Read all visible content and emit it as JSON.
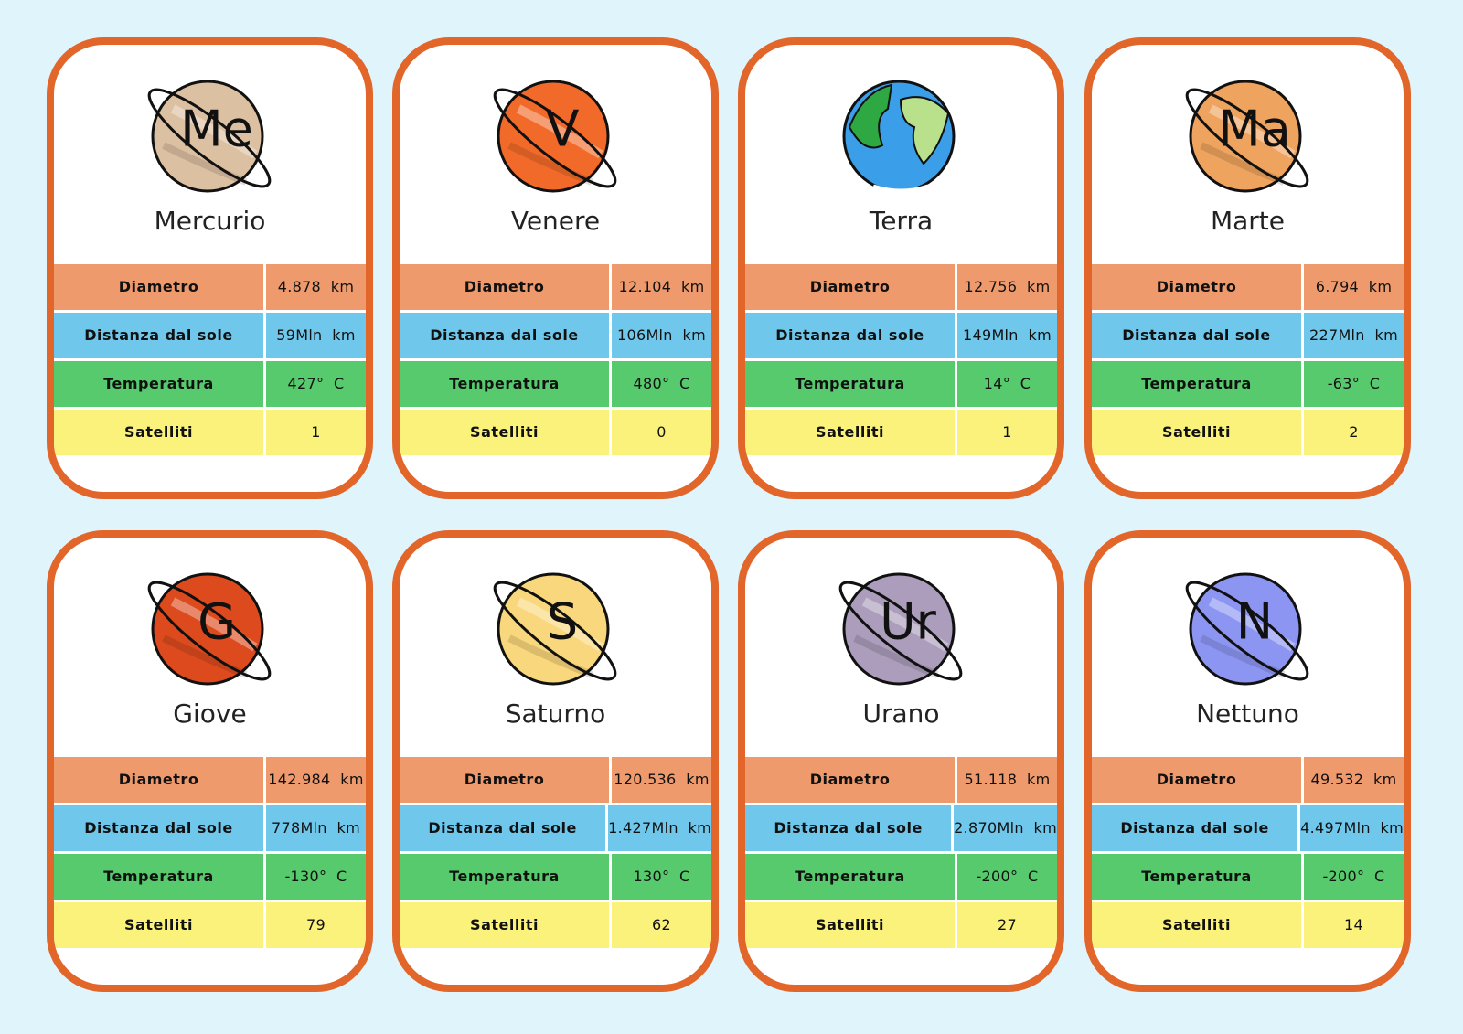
{
  "cards": [
    {
      "symbol": "Me",
      "name": "Mercurio",
      "color": "#dcc0a2",
      "rows": [
        {
          "label": "Diametro",
          "value": "4.878  km"
        },
        {
          "label": "Distanza dal sole",
          "value": "59Mln  km"
        },
        {
          "label": "Temperatura",
          "value": "427°  C"
        },
        {
          "label": "Satelliti",
          "value": "1"
        }
      ]
    },
    {
      "symbol": "V",
      "name": "Venere",
      "color": "#f26a2a",
      "rows": [
        {
          "label": "Diametro",
          "value": "12.104  km"
        },
        {
          "label": "Distanza dal sole",
          "value": "106Mln  km"
        },
        {
          "label": "Temperatura",
          "value": "480°  C"
        },
        {
          "label": "Satelliti",
          "value": "0"
        }
      ]
    },
    {
      "name": "Terra",
      "color": "#3b9ee8",
      "rows": [
        {
          "label": "Diametro",
          "value": "12.756  km"
        },
        {
          "label": "Distanza dal sole",
          "value": "149Mln  km"
        },
        {
          "label": "Temperatura",
          "value": "14°  C"
        },
        {
          "label": "Satelliti",
          "value": "1"
        }
      ]
    },
    {
      "symbol": "Ma",
      "name": "Marte",
      "color": "#eea35e",
      "rows": [
        {
          "label": "Diametro",
          "value": "6.794  km"
        },
        {
          "label": "Distanza dal sole",
          "value": "227Mln  km"
        },
        {
          "label": "Temperatura",
          "value": "-63°  C"
        },
        {
          "label": "Satelliti",
          "value": "2"
        }
      ]
    },
    {
      "symbol": "G",
      "name": "Giove",
      "color": "#dc4a1e",
      "rows": [
        {
          "label": "Diametro",
          "value": "142.984  km"
        },
        {
          "label": "Distanza dal sole",
          "value": "778Mln  km"
        },
        {
          "label": "Temperatura",
          "value": "-130°  C"
        },
        {
          "label": "Satelliti",
          "value": "79"
        }
      ]
    },
    {
      "symbol": "S",
      "name": "Saturno",
      "color": "#f9d77c",
      "rows": [
        {
          "label": "Diametro",
          "value": "120.536  km"
        },
        {
          "label": "Distanza dal sole",
          "value": "1.427Mln  km"
        },
        {
          "label": "Temperatura",
          "value": "130°  C"
        },
        {
          "label": "Satelliti",
          "value": "62"
        }
      ]
    },
    {
      "symbol": "Ur",
      "name": "Urano",
      "color": "#ab9dbb",
      "rows": [
        {
          "label": "Diametro",
          "value": "51.118  km"
        },
        {
          "label": "Distanza dal sole",
          "value": "2.870Mln  km"
        },
        {
          "label": "Temperatura",
          "value": "-200°  C"
        },
        {
          "label": "Satelliti",
          "value": "27"
        }
      ]
    },
    {
      "symbol": "N",
      "name": "Nettuno",
      "color": "#8c96f2",
      "rows": [
        {
          "label": "Diametro",
          "value": "49.532  km"
        },
        {
          "label": "Distanza dal sole",
          "value": "4.497Mln  km"
        },
        {
          "label": "Temperatura",
          "value": "-200°  C"
        },
        {
          "label": "Satelliti",
          "value": "14"
        }
      ]
    }
  ]
}
